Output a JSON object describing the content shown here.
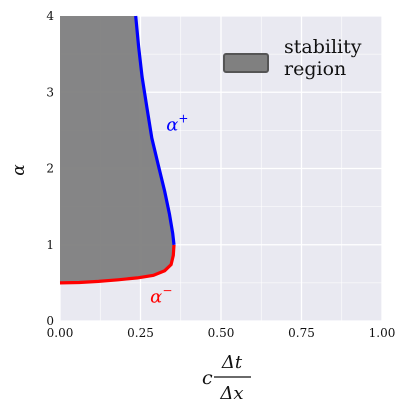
{
  "chart_data": {
    "type": "area",
    "xlabel": {
      "prefix": "c",
      "numerator": "Δt",
      "denominator": "Δx"
    },
    "ylabel": "α",
    "xlim": [
      0,
      1
    ],
    "ylim": [
      0,
      4
    ],
    "xticks": [
      "0.00",
      "0.25",
      "0.50",
      "0.75",
      "1.00"
    ],
    "yticks": [
      "0",
      "1",
      "2",
      "3",
      "4"
    ],
    "grid": true,
    "legend": {
      "placement": "top-right",
      "entries": [
        "stability",
        "region"
      ],
      "swatch_color": "#808080"
    },
    "series": [
      {
        "name": "α+",
        "color": "#0000ff",
        "points": [
          [
            0.354,
            1.0
          ],
          [
            0.35,
            1.15
          ],
          [
            0.34,
            1.4
          ],
          [
            0.325,
            1.7
          ],
          [
            0.305,
            2.05
          ],
          [
            0.285,
            2.4
          ],
          [
            0.27,
            2.8
          ],
          [
            0.255,
            3.2
          ],
          [
            0.244,
            3.6
          ],
          [
            0.235,
            4.0
          ]
        ]
      },
      {
        "name": "α−",
        "color": "#ff0000",
        "points": [
          [
            0.0,
            0.5
          ],
          [
            0.06,
            0.505
          ],
          [
            0.12,
            0.52
          ],
          [
            0.18,
            0.54
          ],
          [
            0.24,
            0.565
          ],
          [
            0.29,
            0.6
          ],
          [
            0.325,
            0.66
          ],
          [
            0.345,
            0.74
          ],
          [
            0.352,
            0.86
          ],
          [
            0.354,
            1.0
          ]
        ]
      }
    ],
    "annotations": [
      {
        "base": "α",
        "sup": "+",
        "x": 0.33,
        "y": 2.5,
        "color": "#0000ff"
      },
      {
        "base": "α",
        "sup": "−",
        "x": 0.28,
        "y": 0.24,
        "color": "#ff0000"
      }
    ],
    "fill": {
      "label": "stability region",
      "color": "#808080"
    }
  }
}
